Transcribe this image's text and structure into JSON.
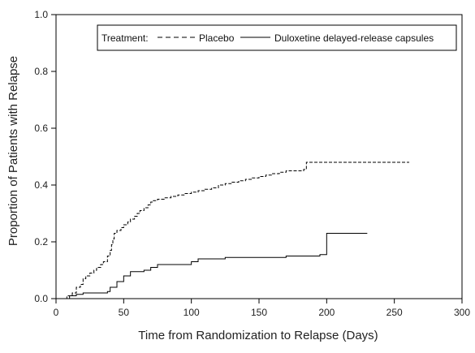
{
  "chart_data": {
    "type": "line",
    "title": "",
    "xlabel": "Time from Randomization to Relapse (Days)",
    "ylabel": "Proportion of Patients with Relapse",
    "xlim": [
      0,
      300
    ],
    "ylim": [
      0,
      1.0
    ],
    "xticks": [
      0,
      50,
      100,
      150,
      200,
      250,
      300
    ],
    "yticks": [
      "0.0",
      "0.2",
      "0.4",
      "0.6",
      "0.8",
      "1.0"
    ],
    "grid": false,
    "legend": {
      "position": "top-right",
      "prefix": "Treatment:"
    },
    "series": [
      {
        "name": "Placebo",
        "style": "dashed",
        "color": "#000000",
        "x": [
          0,
          8,
          12,
          15,
          18,
          20,
          22,
          25,
          28,
          30,
          33,
          35,
          38,
          40,
          41,
          42,
          43,
          45,
          48,
          50,
          53,
          55,
          58,
          60,
          62,
          65,
          68,
          70,
          72,
          75,
          80,
          85,
          90,
          95,
          100,
          105,
          110,
          115,
          120,
          125,
          130,
          135,
          140,
          145,
          150,
          155,
          160,
          165,
          170,
          175,
          180,
          183,
          185,
          200,
          261
        ],
        "y": [
          0,
          0.01,
          0.02,
          0.04,
          0.05,
          0.07,
          0.08,
          0.09,
          0.1,
          0.11,
          0.12,
          0.13,
          0.15,
          0.17,
          0.19,
          0.21,
          0.23,
          0.24,
          0.25,
          0.26,
          0.27,
          0.28,
          0.29,
          0.3,
          0.31,
          0.32,
          0.33,
          0.34,
          0.345,
          0.35,
          0.355,
          0.36,
          0.365,
          0.37,
          0.375,
          0.38,
          0.385,
          0.39,
          0.4,
          0.405,
          0.41,
          0.415,
          0.42,
          0.425,
          0.43,
          0.435,
          0.44,
          0.445,
          0.45,
          0.45,
          0.45,
          0.455,
          0.48,
          0.48,
          0.48
        ]
      },
      {
        "name": "Duloxetine delayed-release capsules",
        "style": "solid",
        "color": "#000000",
        "x": [
          0,
          10,
          15,
          20,
          30,
          38,
          40,
          45,
          50,
          55,
          60,
          65,
          70,
          75,
          80,
          90,
          100,
          105,
          110,
          125,
          150,
          170,
          180,
          195,
          200,
          230
        ],
        "y": [
          0,
          0.01,
          0.015,
          0.02,
          0.02,
          0.025,
          0.04,
          0.06,
          0.08,
          0.095,
          0.095,
          0.1,
          0.11,
          0.12,
          0.12,
          0.12,
          0.13,
          0.14,
          0.14,
          0.145,
          0.145,
          0.15,
          0.15,
          0.155,
          0.23,
          0.23
        ]
      }
    ]
  }
}
